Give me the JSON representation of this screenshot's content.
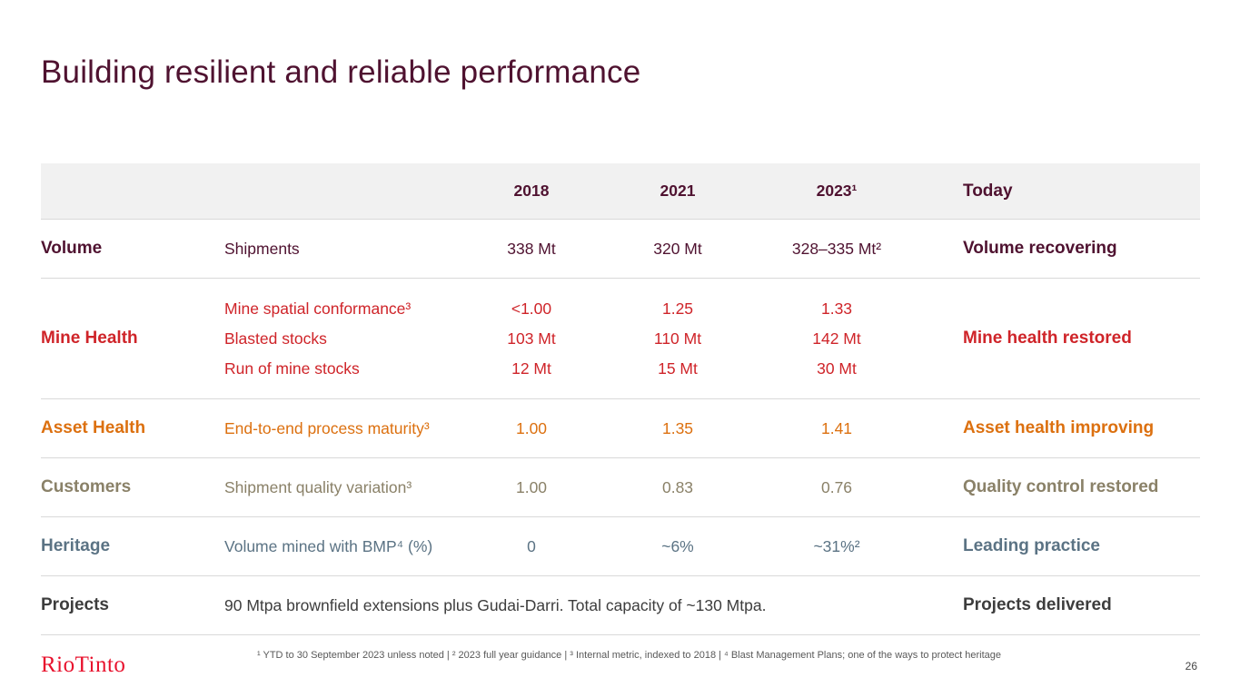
{
  "slide": {
    "title": "Building resilient and reliable performance",
    "page_number": "26",
    "footnote": "¹ YTD to 30 September 2023 unless noted | ² 2023 full year guidance | ³ Internal metric, indexed to 2018 | ⁴ Blast Management Plans; one of the ways to protect heritage",
    "logo_text": "RioTinto"
  },
  "colors": {
    "maroon": "#4f1230",
    "red": "#cf2429",
    "orange": "#dc700f",
    "taupe": "#8a8168",
    "slate": "#5b7384",
    "dark": "#3d3d3d",
    "logo_red": "#e8112d",
    "header_bg": "#f1f1f1"
  },
  "table": {
    "headers": [
      "2018",
      "2021",
      "2023¹",
      "Today"
    ],
    "rows": [
      {
        "category": "Volume",
        "today": "Volume recovering",
        "metrics": [
          {
            "label": "Shipments",
            "values": [
              "338 Mt",
              "320 Mt",
              "328–335 Mt²"
            ]
          }
        ]
      },
      {
        "category": "Mine Health",
        "today": "Mine health restored",
        "metrics": [
          {
            "label": "Mine spatial conformance³",
            "values": [
              "<1.00",
              "1.25",
              "1.33"
            ]
          },
          {
            "label": "Blasted stocks",
            "values": [
              "103 Mt",
              "110 Mt",
              "142 Mt"
            ]
          },
          {
            "label": "Run of mine stocks",
            "values": [
              "12 Mt",
              "15 Mt",
              "30 Mt"
            ]
          }
        ]
      },
      {
        "category": "Asset Health",
        "today": "Asset health improving",
        "metrics": [
          {
            "label": "End-to-end process maturity³",
            "values": [
              "1.00",
              "1.35",
              "1.41"
            ]
          }
        ]
      },
      {
        "category": "Customers",
        "today": "Quality control restored",
        "metrics": [
          {
            "label": "Shipment quality variation³",
            "values": [
              "1.00",
              "0.83",
              "0.76"
            ]
          }
        ]
      },
      {
        "category": "Heritage",
        "today": "Leading practice",
        "metrics": [
          {
            "label": "Volume mined with BMP⁴ (%)",
            "values": [
              "0",
              "~6%",
              "~31%²"
            ]
          }
        ]
      },
      {
        "category": "Projects",
        "today": "Projects delivered",
        "span_text": "90 Mtpa brownfield extensions plus Gudai-Darri.  Total capacity of ~130 Mtpa."
      }
    ]
  }
}
